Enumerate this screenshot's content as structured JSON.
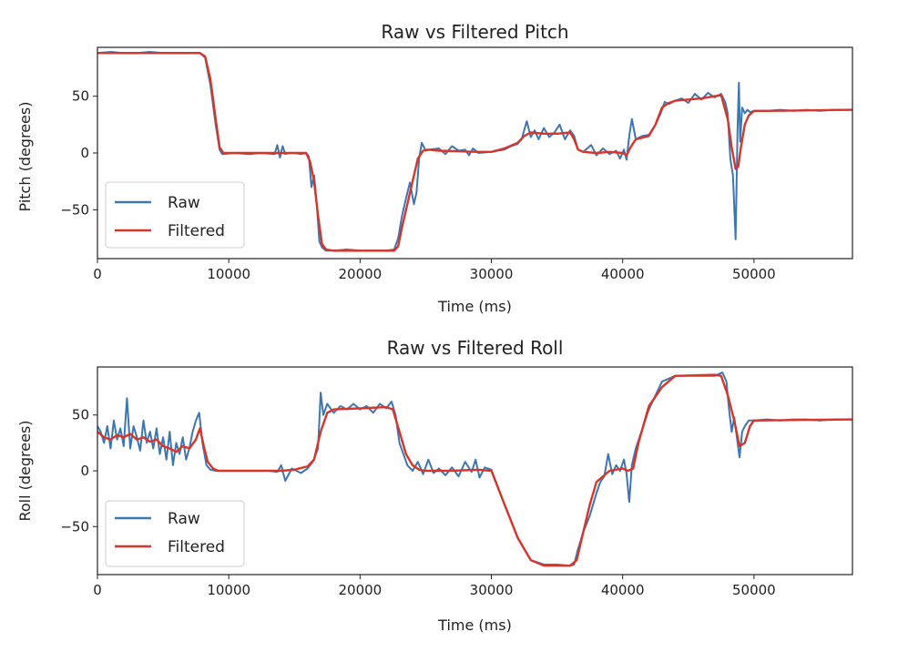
{
  "colors": {
    "raw": "#3e76b0",
    "filtered": "#d8352a",
    "axis": "#222222"
  },
  "chart_data": [
    {
      "type": "line",
      "title": "Raw vs Filtered Pitch",
      "xlabel": "Time (ms)",
      "ylabel": "Pitch (degrees)",
      "xlim": [
        0,
        57500
      ],
      "ylim": [
        -93,
        93
      ],
      "x_ticks": [
        0,
        10000,
        20000,
        30000,
        40000,
        50000
      ],
      "x_tick_labels": [
        "0",
        "10000",
        "20000",
        "30000",
        "40000",
        "50000"
      ],
      "y_ticks": [
        50,
        0,
        -50
      ],
      "y_tick_labels": [
        "50",
        "0",
        "−50"
      ],
      "grid": false,
      "legend_position": "lower-left",
      "series": [
        {
          "name": "Raw",
          "color": "#3e76b0",
          "x": [
            0,
            1000,
            2000,
            3000,
            4000,
            5000,
            6000,
            7000,
            7800,
            8200,
            8600,
            9000,
            9300,
            9500,
            10500,
            11500,
            12500,
            13500,
            13700,
            13900,
            14100,
            14300,
            14600,
            15000,
            15500,
            15900,
            16100,
            16300,
            16500,
            16700,
            16900,
            17100,
            17400,
            18000,
            19000,
            20000,
            21000,
            22000,
            22600,
            22900,
            23200,
            23500,
            23800,
            24100,
            24300,
            24500,
            24700,
            25000,
            25300,
            26000,
            26500,
            27000,
            27500,
            28000,
            28300,
            28600,
            29000,
            30000,
            31000,
            31500,
            32000,
            32300,
            32700,
            33000,
            33300,
            33600,
            34000,
            34400,
            34800,
            35200,
            35600,
            36000,
            36300,
            36600,
            37000,
            37600,
            38000,
            38500,
            39000,
            39500,
            39800,
            40100,
            40300,
            40500,
            40700,
            41000,
            41500,
            42000,
            42500,
            42900,
            43200,
            43500,
            44000,
            44500,
            45000,
            45500,
            46000,
            46500,
            47000,
            47500,
            47800,
            48000,
            48200,
            48400,
            48600,
            48750,
            48850,
            48950,
            49100,
            49300,
            49500,
            49700,
            50000,
            51000,
            52000,
            53000,
            54000,
            55000,
            56000,
            57500
          ],
          "y": [
            88,
            89,
            88,
            88,
            89,
            88,
            88,
            88,
            88,
            84,
            60,
            25,
            3,
            -1,
            0,
            -1,
            0,
            -1,
            7,
            -4,
            6,
            -1,
            0,
            0,
            -1,
            0,
            -3,
            -30,
            -20,
            -45,
            -78,
            -83,
            -86,
            -86,
            -85,
            -86,
            -86,
            -86,
            -85,
            -75,
            -55,
            -40,
            -26,
            -45,
            -35,
            -5,
            9,
            2,
            3,
            4,
            -1,
            6,
            2,
            3,
            -2,
            4,
            0,
            1,
            3,
            6,
            8,
            12,
            28,
            14,
            20,
            12,
            22,
            14,
            18,
            25,
            12,
            20,
            15,
            3,
            1,
            7,
            -2,
            4,
            -1,
            2,
            -5,
            3,
            -6,
            15,
            30,
            12,
            15,
            16,
            25,
            35,
            45,
            43,
            46,
            48,
            44,
            52,
            47,
            53,
            49,
            52,
            45,
            35,
            -5,
            -20,
            -76,
            20,
            62,
            10,
            40,
            35,
            38,
            36,
            37,
            37,
            38,
            37,
            38,
            37,
            38,
            38
          ]
        },
        {
          "name": "Filtered",
          "color": "#d8352a",
          "x": [
            0,
            7800,
            8200,
            8600,
            9000,
            9300,
            9600,
            10500,
            13500,
            15900,
            16200,
            16500,
            16800,
            17100,
            17400,
            18000,
            22600,
            22900,
            23200,
            23600,
            24000,
            24400,
            24800,
            25200,
            26000,
            29000,
            30000,
            31000,
            32000,
            32500,
            33000,
            34000,
            35000,
            36000,
            36300,
            36600,
            37000,
            38000,
            39000,
            40000,
            40300,
            40600,
            41000,
            42000,
            42500,
            43000,
            43500,
            44000,
            46000,
            47500,
            48000,
            48300,
            48600,
            48800,
            49000,
            49300,
            49600,
            50000,
            51000,
            57500
          ],
          "y": [
            88,
            88,
            85,
            65,
            30,
            5,
            0,
            0,
            0,
            0,
            -8,
            -25,
            -55,
            -80,
            -85,
            -86,
            -86,
            -82,
            -65,
            -45,
            -25,
            -5,
            2,
            3,
            2,
            1,
            1,
            4,
            9,
            15,
            18,
            17,
            17,
            18,
            12,
            3,
            1,
            0,
            1,
            0,
            -2,
            5,
            12,
            15,
            25,
            40,
            44,
            46,
            48,
            51,
            30,
            5,
            -14,
            -12,
            5,
            25,
            33,
            37,
            37,
            38
          ]
        }
      ]
    },
    {
      "type": "line",
      "title": "Raw vs Filtered Roll",
      "xlabel": "Time (ms)",
      "ylabel": "Roll (degrees)",
      "xlim": [
        0,
        57500
      ],
      "ylim": [
        -93,
        93
      ],
      "x_ticks": [
        0,
        10000,
        20000,
        30000,
        40000,
        50000
      ],
      "x_tick_labels": [
        "0",
        "10000",
        "20000",
        "30000",
        "40000",
        "50000"
      ],
      "y_ticks": [
        50,
        0,
        -50
      ],
      "y_tick_labels": [
        "50",
        "0",
        "−50"
      ],
      "grid": false,
      "legend_position": "lower-left",
      "series": [
        {
          "name": "Raw",
          "color": "#3e76b0",
          "x": [
            0,
            250,
            500,
            750,
            1000,
            1250,
            1500,
            1750,
            2000,
            2250,
            2500,
            2750,
            3000,
            3250,
            3500,
            3750,
            4000,
            4250,
            4500,
            4750,
            5000,
            5250,
            5500,
            5750,
            6000,
            6250,
            6500,
            6750,
            7000,
            7250,
            7500,
            7750,
            8000,
            8300,
            8600,
            9000,
            10000,
            11000,
            12000,
            13000,
            13700,
            14000,
            14300,
            14800,
            15500,
            16000,
            16400,
            16800,
            17000,
            17200,
            17500,
            18000,
            18500,
            19000,
            19500,
            20000,
            20500,
            21000,
            21500,
            22000,
            22400,
            22700,
            23000,
            23300,
            23600,
            24000,
            24400,
            24800,
            25200,
            25600,
            26000,
            26500,
            27000,
            27500,
            28000,
            28500,
            28800,
            29100,
            29500,
            30000,
            31000,
            32000,
            33000,
            34000,
            35000,
            36000,
            36300,
            36600,
            37000,
            37500,
            38000,
            38300,
            38600,
            38900,
            39200,
            39500,
            39800,
            40100,
            40300,
            40500,
            40700,
            41000,
            42000,
            43000,
            44000,
            45000,
            46000,
            47000,
            47600,
            47900,
            48100,
            48300,
            48500,
            48700,
            48900,
            49100,
            49300,
            49600,
            50000,
            51000,
            52000,
            53000,
            54000,
            55000,
            56000,
            57500
          ],
          "y": [
            40,
            35,
            25,
            40,
            20,
            45,
            28,
            38,
            22,
            65,
            20,
            40,
            30,
            18,
            45,
            25,
            35,
            20,
            38,
            15,
            30,
            10,
            35,
            5,
            25,
            15,
            30,
            10,
            20,
            35,
            45,
            52,
            25,
            5,
            1,
            0,
            0,
            0,
            0,
            0,
            -1,
            5,
            -9,
            2,
            -2,
            2,
            8,
            20,
            70,
            50,
            60,
            52,
            58,
            55,
            60,
            55,
            58,
            52,
            60,
            56,
            62,
            50,
            25,
            15,
            5,
            0,
            8,
            -3,
            10,
            -2,
            2,
            -4,
            3,
            -5,
            8,
            -1,
            10,
            -6,
            3,
            1,
            -30,
            -60,
            -80,
            -84,
            -84,
            -85,
            -84,
            -70,
            -55,
            -40,
            -20,
            -10,
            -5,
            15,
            -3,
            5,
            0,
            10,
            -3,
            -28,
            5,
            20,
            55,
            80,
            85,
            85,
            85,
            85,
            88,
            80,
            55,
            35,
            48,
            30,
            12,
            35,
            40,
            45,
            45,
            46,
            45,
            46,
            46,
            45,
            46,
            46
          ]
        },
        {
          "name": "Filtered",
          "color": "#d8352a",
          "x": [
            0,
            500,
            1000,
            1500,
            2000,
            2500,
            3000,
            3500,
            4000,
            4500,
            5000,
            5500,
            6000,
            6500,
            7000,
            7500,
            7800,
            8100,
            8400,
            8800,
            9200,
            10000,
            14000,
            15000,
            16000,
            16500,
            17000,
            17500,
            18000,
            20000,
            22000,
            22500,
            23000,
            23500,
            24000,
            24500,
            25000,
            27000,
            29000,
            30000,
            31000,
            32000,
            33000,
            34000,
            36000,
            36500,
            37000,
            37500,
            38000,
            39000,
            40000,
            40400,
            40800,
            41200,
            42000,
            43000,
            44000,
            47000,
            47500,
            48000,
            48500,
            48900,
            49300,
            49700,
            50000,
            57500
          ],
          "y": [
            35,
            30,
            28,
            32,
            30,
            33,
            28,
            30,
            26,
            28,
            22,
            20,
            17,
            22,
            20,
            28,
            38,
            22,
            8,
            2,
            0,
            0,
            0,
            1,
            4,
            10,
            35,
            52,
            55,
            56,
            57,
            55,
            35,
            15,
            5,
            1,
            0,
            0,
            1,
            0,
            -30,
            -60,
            -80,
            -85,
            -85,
            -80,
            -55,
            -30,
            -10,
            0,
            2,
            0,
            2,
            25,
            58,
            75,
            85,
            86,
            85,
            68,
            45,
            22,
            25,
            40,
            45,
            46
          ]
        }
      ]
    }
  ]
}
